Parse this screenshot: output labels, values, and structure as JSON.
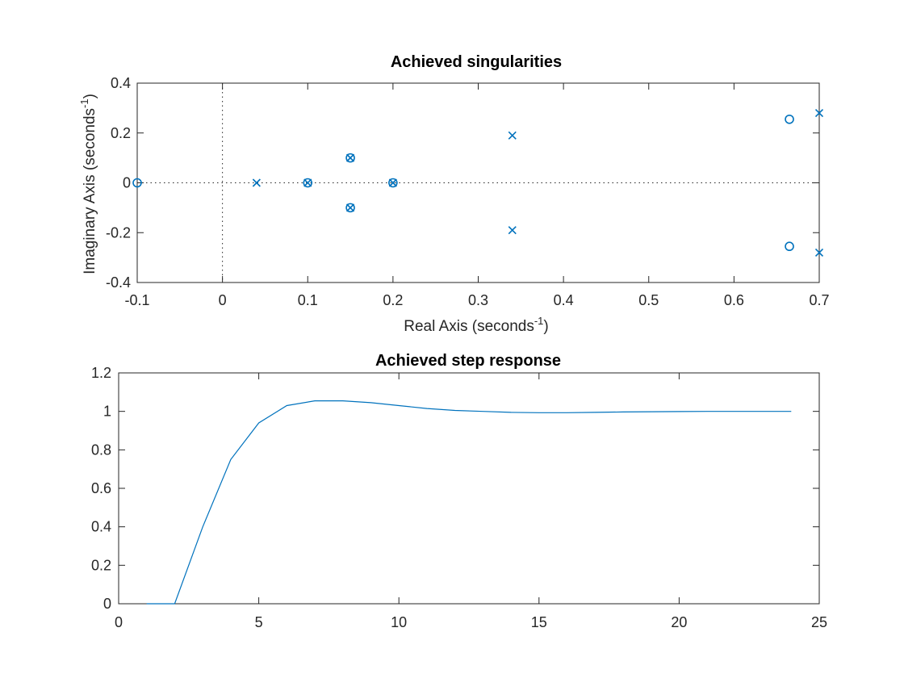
{
  "chart_data": [
    {
      "type": "scatter",
      "title": "Achieved singularities",
      "xlabel": "Real Axis (seconds",
      "ylabel": "Imaginary Axis (seconds",
      "unit_exponent": "-1",
      "xlim": [
        -0.1,
        0.7
      ],
      "ylim": [
        -0.4,
        0.4
      ],
      "xticks": [
        "-0.1",
        "0",
        "0.1",
        "0.2",
        "0.3",
        "0.4",
        "0.5",
        "0.6",
        "0.7"
      ],
      "yticks": [
        "-0.4",
        "-0.2",
        "0",
        "0.2",
        "0.4"
      ],
      "grid": false,
      "color": "#0072BD",
      "poles": [
        {
          "x": 0.04,
          "y": 0
        },
        {
          "x": 0.1,
          "y": 0
        },
        {
          "x": 0.15,
          "y": 0.1
        },
        {
          "x": 0.15,
          "y": -0.1
        },
        {
          "x": 0.2,
          "y": 0
        },
        {
          "x": 0.34,
          "y": 0.19
        },
        {
          "x": 0.34,
          "y": -0.19
        },
        {
          "x": 0.7,
          "y": 0.28
        },
        {
          "x": 0.7,
          "y": -0.28
        }
      ],
      "zeros": [
        {
          "x": -0.1,
          "y": 0
        },
        {
          "x": 0.1,
          "y": 0
        },
        {
          "x": 0.15,
          "y": 0.1
        },
        {
          "x": 0.15,
          "y": -0.1
        },
        {
          "x": 0.2,
          "y": 0
        },
        {
          "x": 0.665,
          "y": 0.255
        },
        {
          "x": 0.665,
          "y": -0.255
        }
      ]
    },
    {
      "type": "line",
      "title": "Achieved step response",
      "xlim": [
        0,
        25
      ],
      "ylim": [
        0,
        1.2
      ],
      "xticks": [
        "0",
        "5",
        "10",
        "15",
        "20",
        "25"
      ],
      "yticks": [
        "0",
        "0.2",
        "0.4",
        "0.6",
        "0.8",
        "1",
        "1.2"
      ],
      "grid": false,
      "color": "#0072BD",
      "x": [
        1,
        2,
        3,
        4,
        5,
        6,
        7,
        8,
        9,
        10,
        11,
        12,
        13,
        14,
        15,
        16,
        17,
        18,
        19,
        20,
        21,
        22,
        23,
        24
      ],
      "y": [
        0,
        0,
        0.4,
        0.75,
        0.94,
        1.03,
        1.055,
        1.055,
        1.045,
        1.03,
        1.015,
        1.005,
        1.0,
        0.995,
        0.993,
        0.993,
        0.995,
        0.997,
        0.998,
        0.999,
        1.0,
        1.0,
        1.0,
        1.0
      ]
    }
  ]
}
